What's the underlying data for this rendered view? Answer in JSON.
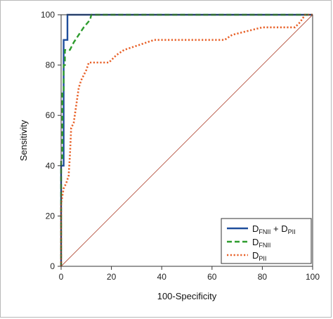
{
  "chart_data": {
    "type": "line",
    "xlabel": "100-Specificity",
    "ylabel": "Sensitivity",
    "xlim": [
      0,
      100
    ],
    "ylim": [
      0,
      100
    ],
    "xticks": [
      "0",
      "20",
      "40",
      "60",
      "80",
      "100"
    ],
    "yticks": [
      "0",
      "20",
      "40",
      "60",
      "80",
      "100"
    ],
    "grid": false,
    "legend_position": "bottom-right",
    "series": [
      {
        "name": "DFNII + DPII",
        "legend_main": [
          "D",
          " + D"
        ],
        "legend_sub": [
          "FNII",
          "PII"
        ],
        "color": "#1f4e9c",
        "style": "solid",
        "points": [
          [
            0,
            0
          ],
          [
            0,
            40
          ],
          [
            1,
            40
          ],
          [
            1,
            90
          ],
          [
            2.5,
            90
          ],
          [
            2.5,
            100
          ],
          [
            100,
            100
          ]
        ]
      },
      {
        "name": "DFNII",
        "legend_main": [
          "D"
        ],
        "legend_sub": [
          "FNII"
        ],
        "color": "#2e9c2e",
        "style": "dashed",
        "points": [
          [
            0,
            0
          ],
          [
            0,
            43
          ],
          [
            0.5,
            43
          ],
          [
            0.5,
            70
          ],
          [
            1,
            70
          ],
          [
            1,
            80
          ],
          [
            1.5,
            80
          ],
          [
            1.5,
            86
          ],
          [
            3.5,
            86
          ],
          [
            5,
            89
          ],
          [
            7,
            92
          ],
          [
            9,
            95
          ],
          [
            11.5,
            98
          ],
          [
            12,
            100
          ],
          [
            100,
            100
          ]
        ]
      },
      {
        "name": "DPII",
        "legend_main": [
          "D"
        ],
        "legend_sub": [
          "PII"
        ],
        "color": "#e8622a",
        "style": "dotted",
        "points": [
          [
            0,
            0
          ],
          [
            0,
            25
          ],
          [
            1,
            31
          ],
          [
            2,
            33
          ],
          [
            3,
            36
          ],
          [
            3.5,
            44
          ],
          [
            4,
            55
          ],
          [
            5,
            57
          ],
          [
            6,
            64
          ],
          [
            7,
            71
          ],
          [
            8,
            74
          ],
          [
            9,
            76
          ],
          [
            10,
            78
          ],
          [
            11,
            81
          ],
          [
            19,
            81
          ],
          [
            22,
            84
          ],
          [
            25,
            86
          ],
          [
            31,
            88
          ],
          [
            37,
            90
          ],
          [
            40,
            90
          ],
          [
            65,
            90
          ],
          [
            68,
            92
          ],
          [
            76,
            94
          ],
          [
            80,
            95
          ],
          [
            93,
            95
          ],
          [
            95,
            97
          ],
          [
            97,
            100
          ],
          [
            100,
            100
          ]
        ]
      },
      {
        "name": "Reference line",
        "color": "#b5533f",
        "style": "thin",
        "points": [
          [
            0,
            0
          ],
          [
            100,
            100
          ]
        ]
      }
    ]
  }
}
